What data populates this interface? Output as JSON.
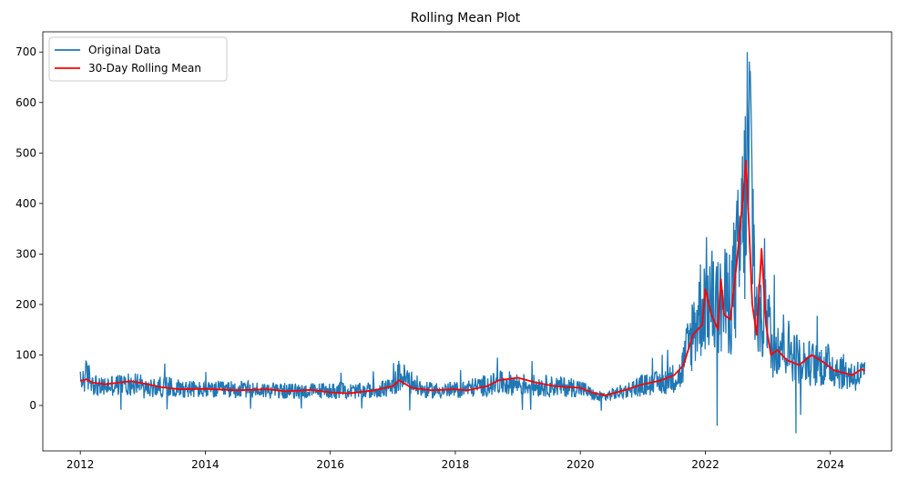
{
  "chart_data": {
    "type": "line",
    "title": "Rolling Mean Plot",
    "xlabel": "",
    "ylabel": "",
    "x_range": [
      2011.4,
      2024.98
    ],
    "ylim": [
      -90,
      740
    ],
    "x_ticks": [
      2012,
      2014,
      2016,
      2018,
      2020,
      2022,
      2024
    ],
    "x_tick_labels": [
      "2012",
      "2014",
      "2016",
      "2018",
      "2020",
      "2022",
      "2024"
    ],
    "y_ticks": [
      0,
      100,
      200,
      300,
      400,
      500,
      600,
      700
    ],
    "y_tick_labels": [
      "0",
      "100",
      "200",
      "300",
      "400",
      "500",
      "600",
      "700"
    ],
    "grid": false,
    "legend": {
      "position": "top-left",
      "entries": [
        "Original Data",
        "30-Day Rolling Mean"
      ]
    },
    "series": [
      {
        "name": "Original Data",
        "color": "#1f77b4",
        "style": "noisy daily values",
        "x": [
          2012.0,
          2012.1,
          2012.3,
          2012.5,
          2012.8,
          2012.95,
          2013.0,
          2013.3,
          2013.6,
          2014.0,
          2014.5,
          2015.0,
          2015.5,
          2016.0,
          2016.5,
          2017.0,
          2017.1,
          2017.5,
          2018.0,
          2018.5,
          2018.8,
          2019.2,
          2019.6,
          2020.0,
          2020.3,
          2020.6,
          2021.0,
          2021.3,
          2021.6,
          2021.8,
          2022.0,
          2022.2,
          2022.4,
          2022.55,
          2022.65,
          2022.72,
          2022.8,
          2022.9,
          2022.97,
          2023.05,
          2023.2,
          2023.5,
          2023.8,
          2024.0,
          2024.3,
          2024.55
        ],
        "values": [
          45,
          60,
          35,
          40,
          42,
          48,
          30,
          38,
          35,
          30,
          32,
          30,
          28,
          30,
          28,
          35,
          60,
          30,
          30,
          40,
          45,
          40,
          38,
          35,
          15,
          25,
          40,
          45,
          60,
          150,
          220,
          190,
          210,
          300,
          420,
          520,
          200,
          150,
          250,
          110,
          130,
          90,
          80,
          80,
          60,
          60
        ],
        "extremes": {
          "max": 700,
          "max_at": 2022.67,
          "min": -55,
          "min_at": 2023.45
        }
      },
      {
        "name": "30-Day Rolling Mean",
        "color": "#ff0000",
        "x": [
          2012.0,
          2012.1,
          2012.2,
          2012.4,
          2012.6,
          2012.8,
          2013.0,
          2013.3,
          2013.6,
          2014.0,
          2014.5,
          2015.0,
          2015.3,
          2015.7,
          2016.0,
          2016.3,
          2016.7,
          2017.0,
          2017.1,
          2017.3,
          2017.6,
          2018.0,
          2018.2,
          2018.5,
          2018.7,
          2019.0,
          2019.3,
          2019.6,
          2020.0,
          2020.2,
          2020.4,
          2020.7,
          2021.0,
          2021.3,
          2021.5,
          2021.65,
          2021.8,
          2021.95,
          2022.0,
          2022.1,
          2022.2,
          2022.25,
          2022.3,
          2022.4,
          2022.5,
          2022.6,
          2022.65,
          2022.7,
          2022.75,
          2022.82,
          2022.9,
          2022.97,
          2023.05,
          2023.15,
          2023.3,
          2023.5,
          2023.7,
          2023.9,
          2024.05,
          2024.2,
          2024.35,
          2024.5,
          2024.55
        ],
        "values": [
          48,
          52,
          45,
          42,
          45,
          48,
          44,
          36,
          32,
          33,
          30,
          32,
          28,
          31,
          26,
          24,
          30,
          38,
          50,
          35,
          30,
          32,
          30,
          38,
          50,
          55,
          45,
          38,
          35,
          25,
          20,
          30,
          42,
          50,
          60,
          80,
          140,
          160,
          230,
          180,
          150,
          250,
          180,
          170,
          280,
          410,
          485,
          350,
          200,
          140,
          310,
          160,
          100,
          110,
          90,
          80,
          100,
          85,
          70,
          65,
          60,
          72,
          68
        ]
      }
    ]
  }
}
